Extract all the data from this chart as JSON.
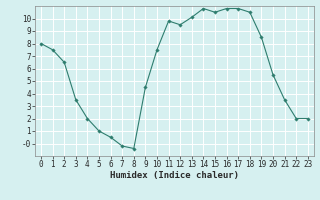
{
  "x": [
    0,
    1,
    2,
    3,
    4,
    5,
    6,
    7,
    8,
    9,
    10,
    11,
    12,
    13,
    14,
    15,
    16,
    17,
    18,
    19,
    20,
    21,
    22,
    23
  ],
  "y": [
    8,
    7.5,
    6.5,
    3.5,
    2,
    1,
    0.5,
    -0.2,
    -0.4,
    4.5,
    7.5,
    9.8,
    9.5,
    10.1,
    10.8,
    10.5,
    10.8,
    10.8,
    10.5,
    8.5,
    5.5,
    3.5,
    2,
    2
  ],
  "xlabel": "Humidex (Indice chaleur)",
  "line_color": "#2e7d6e",
  "marker": "D",
  "marker_size": 1.8,
  "bg_color": "#d6f0f0",
  "grid_color": "#ffffff",
  "ylim": [
    -1,
    11
  ],
  "xlim": [
    -0.5,
    23.5
  ],
  "yticks": [
    0,
    1,
    2,
    3,
    4,
    5,
    6,
    7,
    8,
    9,
    10
  ],
  "xticks": [
    0,
    1,
    2,
    3,
    4,
    5,
    6,
    7,
    8,
    9,
    10,
    11,
    12,
    13,
    14,
    15,
    16,
    17,
    18,
    19,
    20,
    21,
    22,
    23
  ],
  "xlabel_fontsize": 6.5,
  "tick_fontsize": 5.5,
  "linewidth": 0.8
}
